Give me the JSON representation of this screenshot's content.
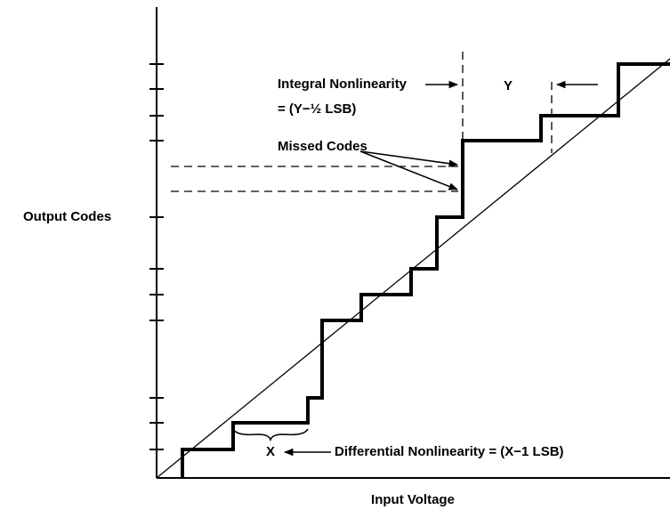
{
  "labels": {
    "integral": "Integral Nonlinearity",
    "integral_formula": "= (Y−½ LSB)",
    "y_marker": "Y",
    "missed_codes": "Missed Codes",
    "y_axis": "Output Codes",
    "x_marker": "X",
    "differential": "Differential Nonlinearity = (X−1 LSB)",
    "x_axis": "Input Voltage"
  }
}
